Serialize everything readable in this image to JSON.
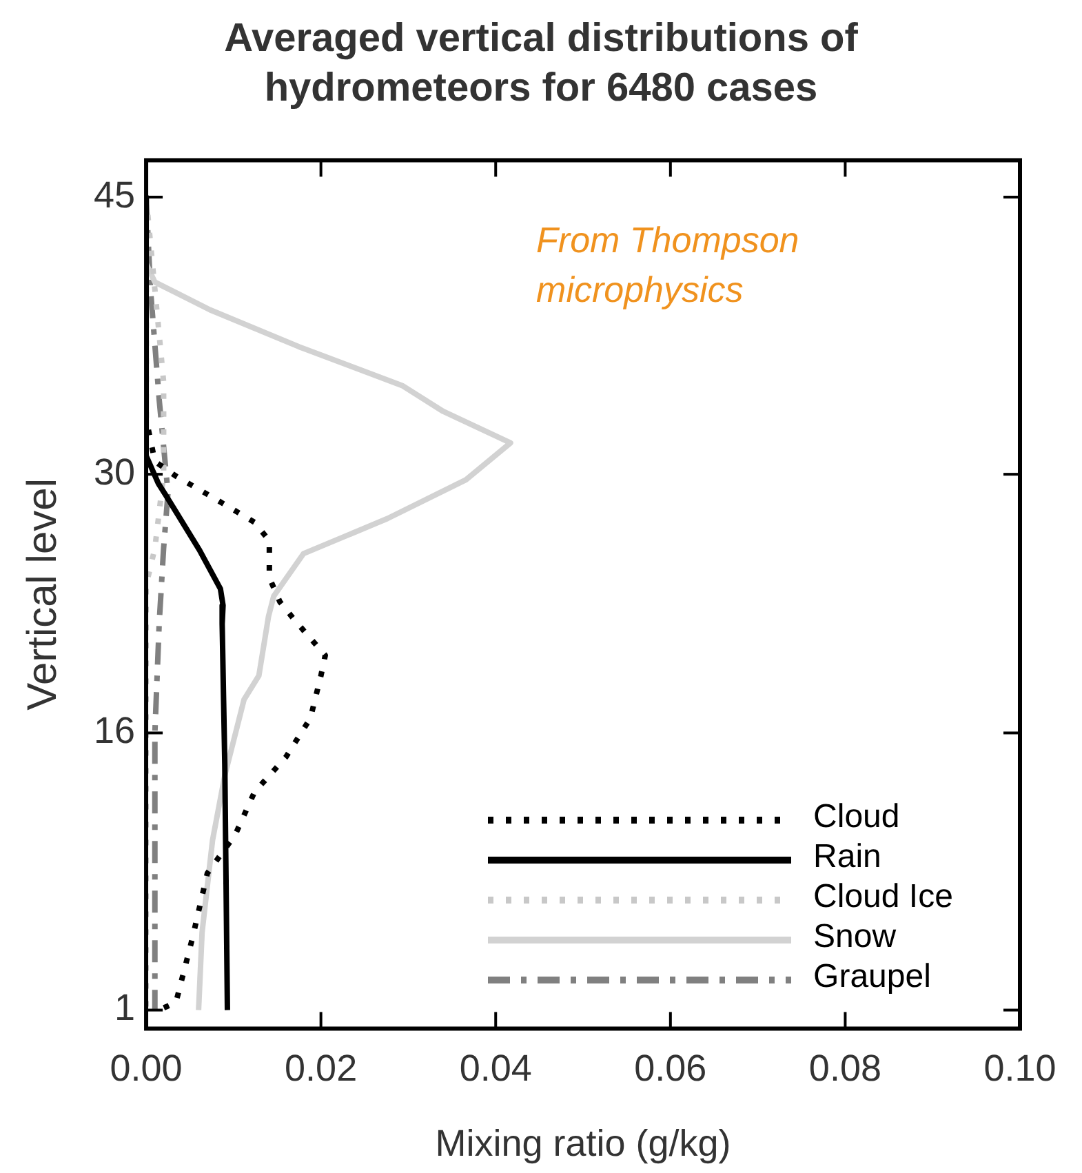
{
  "chart_data": {
    "type": "line",
    "title": "Averaged vertical distributions of hydrometeors for 6480 cases",
    "xlabel": "Mixing ratio (g/kg)",
    "ylabel": "Vertical level",
    "xlim": [
      0,
      0.1
    ],
    "xticks": [
      {
        "value": 0,
        "label": "0.00"
      },
      {
        "value": 0.02,
        "label": "0.02"
      },
      {
        "value": 0.04,
        "label": "0.04"
      },
      {
        "value": 0.06,
        "label": "0.06"
      },
      {
        "value": 0.08,
        "label": "0.08"
      },
      {
        "value": 0.1,
        "label": "0.10"
      }
    ],
    "ylim": [
      0,
      47
    ],
    "yticks": [
      1,
      16,
      30,
      45
    ],
    "grid": false,
    "legend": "bottom right",
    "annotations": [
      "From Thompson microphysics"
    ],
    "series": [
      {
        "name": "Cloud",
        "color": "#000000",
        "line_style": "dotted",
        "x": [
          0,
          0,
          0.001,
          0.0034,
          0.0078,
          0.0124,
          0.0141,
          0.0141,
          0.0153,
          0.017,
          0.0205,
          0.02,
          0.0188,
          0.016,
          0.0124,
          0.0102,
          0.007,
          0.0053,
          0.0034,
          0.0014
        ],
        "values": [
          45,
          33,
          30.7,
          29.9,
          28.7,
          27.4,
          26.4,
          24.4,
          23.1,
          22.1,
          20.2,
          19.1,
          16.8,
          14.7,
          12.8,
          10.5,
          8.4,
          4.9,
          1.4,
          1
        ]
      },
      {
        "name": "Rain",
        "color": "#000000",
        "line_style": "solid",
        "x": [
          0,
          0,
          0.0014,
          0.0022,
          0.0061,
          0.0085,
          0.0088,
          0.0087,
          0.009,
          0.0093
        ],
        "values": [
          45,
          31,
          29.5,
          28.9,
          25.9,
          23.8,
          22.9,
          21.9,
          14.3,
          1
        ]
      },
      {
        "name": "Cloud Ice",
        "color": "#c8c8c8",
        "line_style": "dotted",
        "x": [
          0,
          0.001,
          0.002,
          0.002,
          0.001,
          0,
          0
        ],
        "values": [
          45,
          40,
          35,
          30,
          26,
          24,
          1
        ]
      },
      {
        "name": "Snow",
        "color": "#d2d2d2",
        "line_style": "solid",
        "x": [
          0,
          0,
          0.001,
          0.0073,
          0.0175,
          0.0293,
          0.034,
          0.0417,
          0.0366,
          0.0276,
          0.018,
          0.0146,
          0.014,
          0.0129,
          0.0112,
          0.009,
          0.0076,
          0.0064,
          0.006
        ],
        "values": [
          45,
          41.4,
          40.4,
          38.9,
          36.9,
          34.8,
          33.4,
          31.7,
          29.7,
          27.6,
          25.7,
          23.4,
          22.3,
          19.1,
          17.8,
          13.7,
          10.2,
          5.2,
          1
        ]
      },
      {
        "name": "Graupel",
        "color": "#808080",
        "line_style": "dashed",
        "x": [
          0,
          0.0005,
          0.0015,
          0.0025,
          0.002,
          0.0015,
          0.001,
          0.001
        ],
        "values": [
          45,
          40,
          34,
          29,
          26,
          22,
          16,
          1
        ]
      }
    ]
  }
}
